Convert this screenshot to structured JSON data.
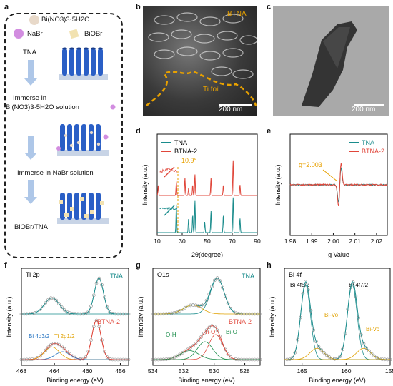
{
  "figure": {
    "panel_labels": [
      "a",
      "b",
      "c",
      "d",
      "e",
      "f",
      "g",
      "h"
    ],
    "a": {
      "legend": [
        {
          "label": "Bi(NO3)3·5H2O",
          "color": "#e8d9c9"
        },
        {
          "label": "NaBr",
          "color": "#d28de0"
        },
        {
          "label": "BiOBr",
          "color": "#f2e2b1"
        }
      ],
      "steps": [
        "TNA",
        "Immerse in",
        "Bi(NO3)3·5H2O solution",
        "Immerse in NaBr solution",
        "BiOBr/TNA"
      ]
    },
    "b": {
      "labels": [
        "BTNA",
        "Ti foil"
      ],
      "scale": "200 nm"
    },
    "c": {
      "scale": "200 nm"
    }
  },
  "chart_data": [
    {
      "id": "d",
      "type": "line",
      "xlabel": "2θ(degree)",
      "ylabel": "Intensity (a.u.)",
      "xlim": [
        10,
        90
      ],
      "xticks": [
        10,
        30,
        50,
        70,
        90
      ],
      "legend": [
        {
          "name": "TNA",
          "color": "#1a8c8c"
        },
        {
          "name": "BTNA-2",
          "color": "#e0463a"
        }
      ],
      "annotation": "10.9°",
      "series": [
        {
          "name": "TNA",
          "peaks": [
            [
              25.3,
              0.8
            ],
            [
              35.1,
              0.4
            ],
            [
              38.4,
              0.5
            ],
            [
              40.2,
              0.9
            ],
            [
              48.0,
              0.3
            ],
            [
              53.0,
              0.6
            ],
            [
              62.9,
              0.5
            ],
            [
              70.7,
              1.0
            ],
            [
              76.2,
              0.4
            ]
          ]
        },
        {
          "name": "BTNA-2",
          "peaks": [
            [
              10.9,
              0.3
            ],
            [
              25.3,
              0.4
            ],
            [
              32.2,
              0.5
            ],
            [
              35.1,
              0.2
            ],
            [
              38.4,
              0.3
            ],
            [
              40.2,
              0.6
            ],
            [
              53.0,
              0.5
            ],
            [
              62.9,
              0.3
            ],
            [
              70.7,
              1.0
            ],
            [
              76.2,
              0.3
            ]
          ]
        }
      ]
    },
    {
      "id": "e",
      "type": "line",
      "xlabel": "g Value",
      "ylabel": "Intensity (a.u.)",
      "xlim": [
        1.98,
        2.025
      ],
      "xticks": [
        "1.98",
        "1.99",
        "2.00",
        "2.01",
        "2.02"
      ],
      "legend": [
        {
          "name": "TNA",
          "color": "#1a8c8c"
        },
        {
          "name": "BTNA-2",
          "color": "#e0463a"
        }
      ],
      "annotation": "g=2.003"
    },
    {
      "id": "f",
      "type": "line",
      "title": "Ti 2p",
      "xlabel": "Binding energy (eV)",
      "ylabel": "Intensity (a.u.)",
      "xlim": [
        468,
        455
      ],
      "xticks": [
        468,
        464,
        460,
        456
      ],
      "labels": [
        "TNA",
        "BTNA-2",
        "Bi 4d3/2",
        "Ti 2p1/2"
      ],
      "peaks_tna": [
        464.3,
        458.6
      ],
      "peaks_btna": [
        464.3,
        458.9
      ]
    },
    {
      "id": "g",
      "type": "line",
      "title": "O1s",
      "xlabel": "Binding energy (eV)",
      "ylabel": "Intensity (a.u.)",
      "xlim": [
        534,
        527
      ],
      "xticks": [
        534,
        532,
        530,
        528
      ],
      "labels": [
        "TNA",
        "BTNA-2",
        "Ti-O",
        "Bi-O",
        "O-H"
      ],
      "peaks": [
        529.8,
        530.6,
        531.6
      ]
    },
    {
      "id": "h",
      "type": "line",
      "title": "Bi 4f",
      "xlabel": "Binding energy (eV)",
      "ylabel": "Intensity (a.u.)",
      "xlim": [
        167,
        155
      ],
      "xticks": [
        165,
        160,
        155
      ],
      "labels": [
        "Bi 4f5/2",
        "Bi 4f7/2",
        "Bi-Vo",
        "Bi-Vo"
      ],
      "peaks": [
        164.6,
        159.3
      ]
    }
  ]
}
